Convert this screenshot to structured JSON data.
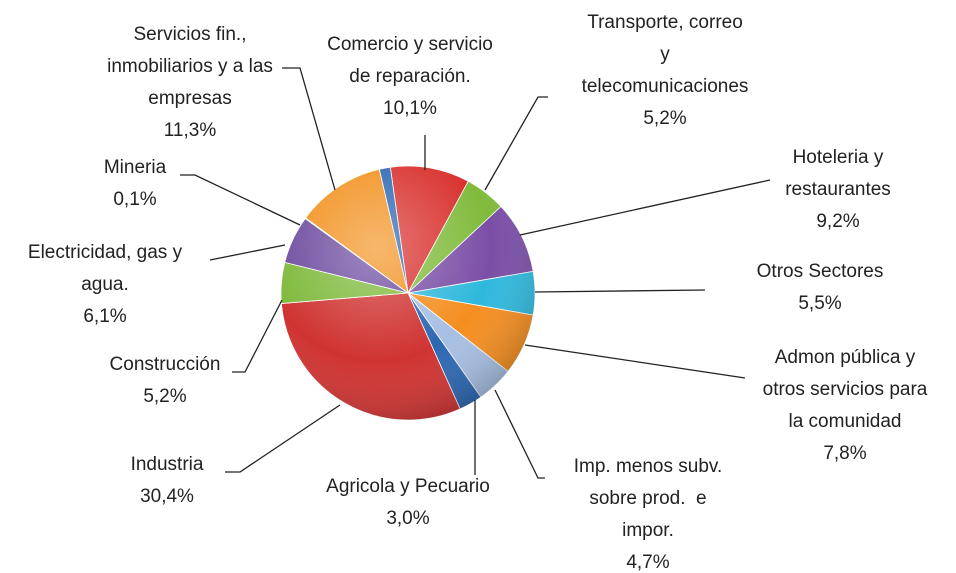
{
  "chart_data": {
    "type": "pie",
    "categories": [
      "Comercio y servicio\nde reparación.",
      "Transporte, correo\ny\ntelecomunicaciones",
      "Hoteleria y\nrestaurantes",
      "Otros Sectores",
      "Admon pública y\notros servicios para\nla comunidad",
      "Imp. menos subv.\nsobre prod.  e\nimpor.",
      "Agricola y Pecuario",
      "Industria",
      "Construcción",
      "Electricidad, gas y\nagua.",
      "Mineria",
      "Servicios fin.,\ninmobiliarios y a las\nempresas",
      null
    ],
    "values": [
      10.1,
      5.2,
      9.2,
      5.5,
      7.8,
      4.7,
      3.0,
      30.4,
      5.2,
      6.1,
      0.1,
      11.3,
      1.4
    ],
    "value_labels": [
      "10,1%",
      "5,2%",
      "9,2%",
      "5,5%",
      "7,8%",
      "4,7%",
      "3,0%",
      "30,4%",
      "5,2%",
      "6,1%",
      "0,1%",
      "11,3%",
      null
    ],
    "colors": [
      "#d8302d",
      "#80bb3c",
      "#7a4ea6",
      "#2fb8dc",
      "#f58e20",
      "#a7bfe3",
      "#2c67b2",
      "#cf3331",
      "#7eb93b",
      "#6d4b9f",
      "#36a9cf",
      "#f2911f",
      "#2c67b2"
    ]
  }
}
